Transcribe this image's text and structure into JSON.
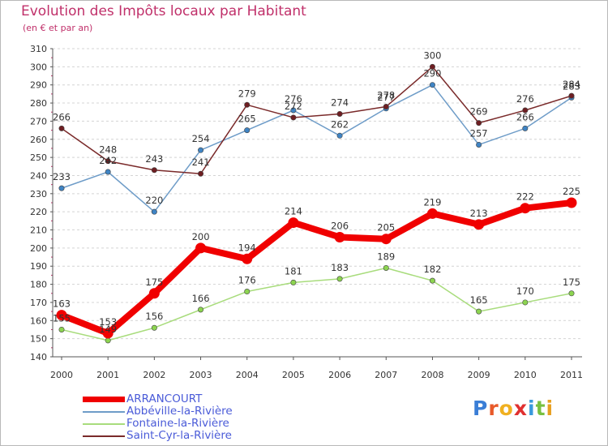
{
  "chart_data": {
    "type": "line",
    "title": "Evolution des Impôts locaux par Habitant",
    "subtitle": "(en € et par an)",
    "x": [
      "2000",
      "2001",
      "2002",
      "2003",
      "2004",
      "2005",
      "2006",
      "2007",
      "2008",
      "2009",
      "2010",
      "2011"
    ],
    "ylim": [
      140,
      310
    ],
    "yticks": [
      140,
      150,
      160,
      170,
      180,
      190,
      200,
      210,
      220,
      230,
      240,
      250,
      260,
      270,
      280,
      290,
      300,
      310
    ],
    "grid": "horizontal dashed",
    "series": [
      {
        "name": "Abbéville-la-Rivière",
        "color": "#6e9cc8",
        "marker": "#3f84c4",
        "values": [
          233,
          242,
          220,
          254,
          265,
          276,
          262,
          277,
          290,
          257,
          266,
          283
        ]
      },
      {
        "name": "Fontaine-la-Rivière",
        "color": "#a8dc7c",
        "marker": "#8cd450",
        "values": [
          155,
          149,
          156,
          166,
          176,
          181,
          183,
          189,
          182,
          165,
          170,
          175
        ]
      },
      {
        "name": "Saint-Cyr-la-Rivière",
        "color": "#7a2a2a",
        "marker": "#6e1e22",
        "values": [
          266,
          248,
          243,
          241,
          279,
          272,
          274,
          278,
          300,
          269,
          276,
          284
        ]
      },
      {
        "name": "ARRANCOURT",
        "color": "#f00000",
        "marker": "#f00000",
        "values": [
          163,
          153,
          175,
          200,
          194,
          214,
          206,
          205,
          219,
          213,
          222,
          225
        ]
      }
    ],
    "labels": [
      [
        "233",
        "242",
        "220",
        "254",
        "265",
        "276",
        "262",
        "277",
        "290",
        "257",
        "266",
        "283"
      ],
      [
        "155",
        "149",
        "156",
        "166",
        "176",
        "181",
        "183",
        "189",
        "182",
        "165",
        "170",
        "175"
      ],
      [
        "266",
        "248",
        "243",
        "241",
        "279",
        "272",
        "274",
        "278",
        "300",
        "269",
        "276",
        "284"
      ],
      [
        "163",
        "153",
        "175",
        "200",
        "194",
        "214",
        "206",
        "205",
        "219",
        "213",
        "222",
        "225"
      ]
    ]
  },
  "legend": {
    "items": [
      {
        "label": "ARRANCOURT",
        "color": "#f00000"
      },
      {
        "label": "Abbéville-la-Rivière",
        "color": "#6e9cc8"
      },
      {
        "label": "Fontaine-la-Rivière",
        "color": "#a8dc7c"
      },
      {
        "label": "Saint-Cyr-la-Rivière",
        "color": "#7a2a2a"
      }
    ]
  },
  "logo": {
    "letters": [
      "P",
      "r",
      "o",
      "x",
      "i",
      "t",
      "i"
    ],
    "colors": [
      "#3a7ed6",
      "#e85a2a",
      "#f0b020",
      "#e03030",
      "#3a9adc",
      "#78c040",
      "#e8a020"
    ]
  }
}
